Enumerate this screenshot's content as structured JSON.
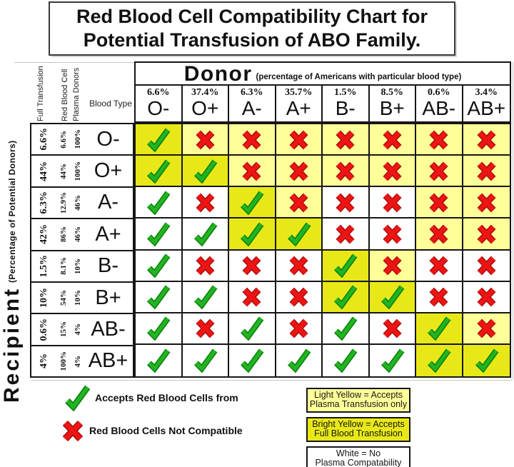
{
  "chart_data": {
    "type": "table",
    "title": "Red Blood Cell Compatibility Chart for Potential Transfusion of ABO Family.",
    "donor_axis": {
      "label": "Donor",
      "sublabel": "(percentage of Americans with particular blood type)"
    },
    "recipient_axis": {
      "label": "Recipient",
      "sublabel": "(Percentage of Potential Donors)"
    },
    "column_meta": {
      "full_transfusion": "Full Transfusion",
      "red_blood_cell": "Red Blood Cell",
      "plasma_donors": "Plasma Donors",
      "blood_type": "Blood Type"
    },
    "donors": [
      {
        "type": "O-",
        "pct": "6.6%"
      },
      {
        "type": "O+",
        "pct": "37.4%"
      },
      {
        "type": "A-",
        "pct": "6.3%"
      },
      {
        "type": "A+",
        "pct": "35.7%"
      },
      {
        "type": "B-",
        "pct": "1.5%"
      },
      {
        "type": "B+",
        "pct": "8.5%"
      },
      {
        "type": "AB-",
        "pct": "0.6%"
      },
      {
        "type": "AB+",
        "pct": "3.4%"
      }
    ],
    "recipients": [
      {
        "type": "O-",
        "full": "6.6%",
        "rbc": "6.6%",
        "plasma": "100%"
      },
      {
        "type": "O+",
        "full": "44%",
        "rbc": "44%",
        "plasma": "100%"
      },
      {
        "type": "A-",
        "full": "6.3%",
        "rbc": "12.9%",
        "plasma": "46%"
      },
      {
        "type": "A+",
        "full": "42%",
        "rbc": "86%",
        "plasma": "46%"
      },
      {
        "type": "B-",
        "full": "1.5%",
        "rbc": "8.1%",
        "plasma": "10%"
      },
      {
        "type": "B+",
        "full": "10%",
        "rbc": "54%",
        "plasma": "10%"
      },
      {
        "type": "AB-",
        "full": "0.6%",
        "rbc": "15%",
        "plasma": "4%"
      },
      {
        "type": "AB+",
        "full": "4%",
        "rbc": "100%",
        "plasma": "4%"
      }
    ],
    "matrix": [
      [
        "check|bright",
        "x|light",
        "x|light",
        "x|light",
        "x|light",
        "x|light",
        "x|light",
        "x|light"
      ],
      [
        "check|bright",
        "check|bright",
        "x|light",
        "x|light",
        "x|light",
        "x|light",
        "x|light",
        "x|light"
      ],
      [
        "check|white",
        "x|white",
        "check|bright",
        "x|light",
        "x|white",
        "x|white",
        "x|light",
        "x|light"
      ],
      [
        "check|white",
        "check|white",
        "check|bright",
        "check|bright",
        "x|white",
        "x|white",
        "x|light",
        "x|light"
      ],
      [
        "check|white",
        "x|white",
        "x|white",
        "x|white",
        "check|bright",
        "x|light",
        "x|white",
        "x|white"
      ],
      [
        "check|white",
        "check|white",
        "x|white",
        "x|white",
        "check|bright",
        "check|bright",
        "x|white",
        "x|white"
      ],
      [
        "check|white",
        "x|white",
        "check|white",
        "x|white",
        "check|white",
        "x|white",
        "check|bright",
        "x|light"
      ],
      [
        "check|white",
        "check|white",
        "check|white",
        "check|white",
        "check|white",
        "check|white",
        "check|bright",
        "check|bright"
      ]
    ],
    "cell_meanings": {
      "check": "Accepts Red Blood Cells from",
      "x": "Red Blood Cells Not Compatible",
      "bright": "Bright Yellow = Accepts Full Blood Transfusion",
      "light": "Light Yellow = Accepts Plasma Transfusion only",
      "white": "White = No Plasma Compatability"
    }
  },
  "title": {
    "line1": "Red Blood Cell Compatibility Chart for",
    "line2": "Potential Transfusion of ABO Family."
  },
  "legend": {
    "check_label": "Accepts Red Blood Cells from",
    "x_label": "Red Blood Cells Not Compatible",
    "boxes": [
      {
        "line1": "Light Yellow = Accepts",
        "line2": "Plasma Transfusion only",
        "bg": "light"
      },
      {
        "line1": "Bright Yellow = Accepts",
        "line2": "Full Blood Transfusion",
        "bg": "bright"
      },
      {
        "line1": "White = No",
        "line2": "Plasma Compatability",
        "bg": "white"
      }
    ]
  },
  "colors": {
    "bright_yellow": "#e8e819",
    "light_yellow": "#ffff99",
    "white": "#ffffff",
    "check_green": "#22b422",
    "check_outline": "#0d860d",
    "x_red": "#ee1414",
    "x_outline": "#a50d0d",
    "grid_line": "#161616"
  }
}
